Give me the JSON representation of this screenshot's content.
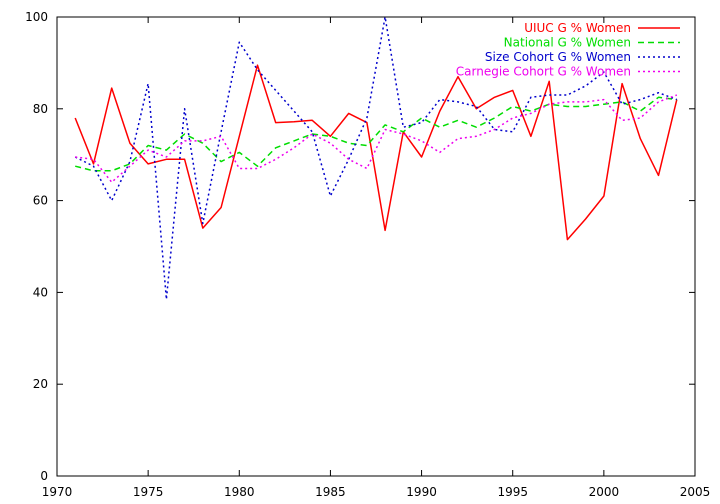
{
  "chart_data": {
    "type": "line",
    "title": "",
    "xlabel": "",
    "ylabel": "",
    "xlim": [
      1970,
      2005
    ],
    "ylim": [
      0,
      100
    ],
    "xticks": [
      1970,
      1975,
      1980,
      1985,
      1990,
      1995,
      2000,
      2005
    ],
    "yticks": [
      0,
      20,
      40,
      60,
      80,
      100
    ],
    "grid": false,
    "legend_position": "top-right",
    "series": [
      {
        "name": "UIUC G % Women",
        "color": "#ff0000",
        "dash": "solid",
        "x": [
          1971,
          1972,
          1973,
          1974,
          1975,
          1976,
          1977,
          1978,
          1979,
          1980,
          1981,
          1982,
          1983,
          1984,
          1985,
          1986,
          1987,
          1988,
          1989,
          1990,
          1991,
          1992,
          1993,
          1994,
          1995,
          1996,
          1997,
          1998,
          1999,
          2000,
          2001,
          2002,
          2003,
          2004
        ],
        "values": [
          78,
          68,
          84.5,
          72.5,
          68,
          69,
          69,
          54,
          58.5,
          74,
          89.5,
          77,
          77.2,
          77.5,
          74,
          79,
          77,
          53.5,
          75,
          69.5,
          79.5,
          87,
          80,
          82.5,
          84,
          74,
          86,
          51.5,
          56,
          61,
          85.5,
          73.5,
          65.5,
          82
        ]
      },
      {
        "name": "National G % Women",
        "color": "#00dd00",
        "dash": "dashed",
        "x": [
          1971,
          1972,
          1973,
          1974,
          1975,
          1976,
          1977,
          1978,
          1979,
          1980,
          1981,
          1982,
          1983,
          1984,
          1985,
          1986,
          1987,
          1988,
          1989,
          1990,
          1991,
          1992,
          1993,
          1994,
          1995,
          1996,
          1997,
          1998,
          1999,
          2000,
          2001,
          2002,
          2003,
          2004
        ],
        "values": [
          67.5,
          66.5,
          66.5,
          68,
          72,
          71,
          74.5,
          72.5,
          68.5,
          70.5,
          67.5,
          71.5,
          73,
          74.5,
          74,
          72.5,
          72,
          76.5,
          75,
          78,
          76,
          77.5,
          76,
          78,
          80.5,
          79.5,
          81,
          80.5,
          80.5,
          81,
          81.5,
          79.5,
          82.5,
          82
        ]
      },
      {
        "name": "Size Cohort G % Women",
        "color": "#0000cc",
        "dash": "dotted",
        "x": [
          1971,
          1972,
          1973,
          1974,
          1975,
          1976,
          1977,
          1978,
          1979,
          1980,
          1981,
          1982,
          1983,
          1984,
          1985,
          1986,
          1987,
          1988,
          1989,
          1990,
          1991,
          1992,
          1993,
          1994,
          1995,
          1996,
          1997,
          1998,
          1999,
          2000,
          2001,
          2002,
          2003,
          2004
        ],
        "values": [
          69.5,
          67.5,
          60,
          68.5,
          85.5,
          38.5,
          80,
          55,
          75,
          94.5,
          88.5,
          84,
          79.5,
          75,
          61,
          69,
          78,
          100,
          76,
          77,
          82,
          81.5,
          80.5,
          75.5,
          75,
          82.5,
          83,
          83,
          85,
          88,
          81,
          82,
          83.5,
          82
        ]
      },
      {
        "name": "Carnegie Cohort G % Women",
        "color": "#ee00ee",
        "dash": "dotted",
        "x": [
          1971,
          1972,
          1973,
          1974,
          1975,
          1976,
          1977,
          1978,
          1979,
          1980,
          1981,
          1982,
          1983,
          1984,
          1985,
          1986,
          1987,
          1988,
          1989,
          1990,
          1991,
          1992,
          1993,
          1994,
          1995,
          1996,
          1997,
          1998,
          1999,
          2000,
          2001,
          2002,
          2003,
          2004
        ],
        "values": [
          69.5,
          69,
          64,
          67.5,
          71,
          69.5,
          73,
          73,
          74,
          67,
          67,
          69,
          71.5,
          74.5,
          72.5,
          69,
          67,
          75.5,
          74.5,
          73,
          70.5,
          73.5,
          74,
          75.5,
          78,
          79,
          81,
          81.5,
          81.5,
          82,
          77.5,
          78,
          81.5,
          83
        ]
      }
    ]
  }
}
